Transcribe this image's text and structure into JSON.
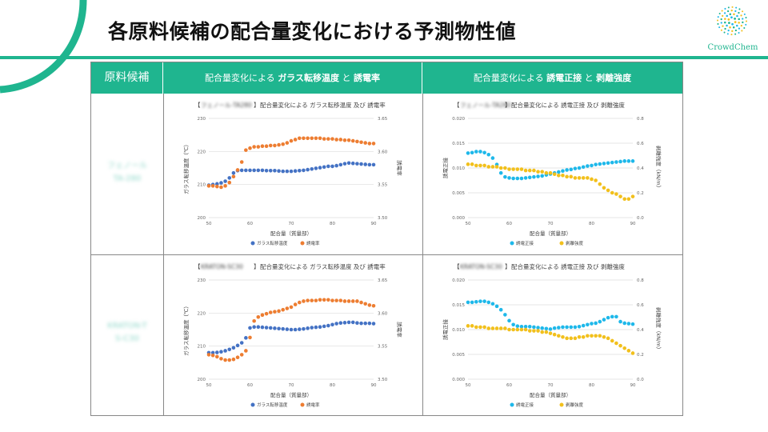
{
  "page": {
    "title": "各原料候補の配合量変化における予測物性値",
    "logo_text": "CrowdChem",
    "colors": {
      "accent": "#1fb58f",
      "series_blue": "#4472c4",
      "series_orange": "#ed7d31",
      "series_cyan": "#1eb8ea",
      "series_yellow": "#f2c01c"
    }
  },
  "table": {
    "header_material": "原料候補",
    "header_col1_prefix": "配合量変化による ",
    "header_col1_bold1": "ガラス転移温度",
    "header_col1_mid": " と ",
    "header_col1_bold2": "誘電率",
    "header_col2_prefix": "配合量変化による ",
    "header_col2_bold1": "誘電正接",
    "header_col2_mid": " と ",
    "header_col2_bold2": "剥離強度",
    "rows": [
      {
        "material_line1": "フェノール",
        "material_line2": "TA-280"
      },
      {
        "material_line1": "KRATON-T",
        "material_line2": "S-C30"
      }
    ]
  },
  "chart_data": [
    {
      "type": "scatter",
      "title_blurred": "フェノール-TA280",
      "title_text": "配合量変化による ガラス転移温度 及び 誘電率",
      "xlabel": "配合量（質量部）",
      "ylabel": "ガラス転移温度（℃）",
      "y2label": "誘電率",
      "xlim": [
        50,
        90
      ],
      "xticks": [
        50,
        60,
        70,
        80,
        90
      ],
      "ylim": [
        200,
        230
      ],
      "yticks": [
        200,
        210,
        220,
        230
      ],
      "y2lim": [
        3.5,
        3.65
      ],
      "y2ticks": [
        "3.50",
        "3.55",
        "3.60",
        "3.65"
      ],
      "series": [
        {
          "name": "ガラス転移温度",
          "axis": "left",
          "color": "#4472c4",
          "x": [
            50,
            51,
            52,
            53,
            54,
            55,
            56,
            57,
            58,
            59,
            60,
            61,
            62,
            63,
            64,
            65,
            66,
            67,
            68,
            69,
            70,
            71,
            72,
            73,
            74,
            75,
            76,
            77,
            78,
            79,
            80,
            81,
            82,
            83,
            84,
            85,
            86,
            87,
            88,
            89,
            90
          ],
          "y": [
            209.8,
            210,
            210.2,
            210.5,
            211,
            212,
            213.5,
            214.2,
            214.3,
            214.3,
            214.3,
            214.3,
            214.3,
            214.3,
            214.2,
            214.2,
            214.2,
            214.1,
            214,
            214,
            214,
            214.1,
            214.2,
            214.3,
            214.5,
            214.7,
            214.9,
            215.1,
            215.3,
            215.5,
            215.5,
            215.7,
            216,
            216.3,
            216.5,
            216.4,
            216.3,
            216.2,
            216.1,
            216,
            216
          ]
        },
        {
          "name": "誘電率",
          "axis": "right",
          "color": "#ed7d31",
          "x": [
            50,
            51,
            52,
            53,
            54,
            55,
            56,
            57,
            58,
            59,
            60,
            61,
            62,
            63,
            64,
            65,
            66,
            67,
            68,
            69,
            70,
            71,
            72,
            73,
            74,
            75,
            76,
            77,
            78,
            79,
            80,
            81,
            82,
            83,
            84,
            85,
            86,
            87,
            88,
            89,
            90
          ],
          "y": [
            3.548,
            3.548,
            3.547,
            3.546,
            3.548,
            3.553,
            3.562,
            3.572,
            3.584,
            3.602,
            3.605,
            3.607,
            3.607,
            3.608,
            3.608,
            3.609,
            3.609,
            3.61,
            3.611,
            3.613,
            3.616,
            3.618,
            3.62,
            3.62,
            3.62,
            3.62,
            3.62,
            3.62,
            3.619,
            3.619,
            3.619,
            3.618,
            3.618,
            3.617,
            3.617,
            3.616,
            3.615,
            3.614,
            3.613,
            3.612,
            3.612
          ]
        }
      ]
    },
    {
      "type": "scatter",
      "title_blurred": "フェノール-TA280",
      "title_text": "配合量変化による 誘電正接 及び 剥離強度",
      "xlabel": "配合量（質量部）",
      "ylabel": "誘電正接",
      "y2label": "剥離強度（kN/m）",
      "xlim": [
        50,
        90
      ],
      "xticks": [
        50,
        60,
        70,
        80,
        90
      ],
      "ylim": [
        0,
        0.02
      ],
      "yticks": [
        "0.000",
        "0.005",
        "0.010",
        "0.015",
        "0.020"
      ],
      "y2lim": [
        0,
        0.8
      ],
      "y2ticks": [
        "0.0",
        "0.2",
        "0.4",
        "0.6",
        "0.8"
      ],
      "series": [
        {
          "name": "誘電正接",
          "axis": "left",
          "color": "#1eb8ea",
          "x": [
            50,
            51,
            52,
            53,
            54,
            55,
            56,
            57,
            58,
            59,
            60,
            61,
            62,
            63,
            64,
            65,
            66,
            67,
            68,
            69,
            70,
            71,
            72,
            73,
            74,
            75,
            76,
            77,
            78,
            79,
            80,
            81,
            82,
            83,
            84,
            85,
            86,
            87,
            88,
            89,
            90
          ],
          "y": [
            0.013,
            0.0131,
            0.0133,
            0.0133,
            0.0131,
            0.0127,
            0.012,
            0.0107,
            0.009,
            0.0082,
            0.008,
            0.0079,
            0.0079,
            0.0079,
            0.008,
            0.0081,
            0.0082,
            0.0083,
            0.0084,
            0.0086,
            0.0088,
            0.009,
            0.0092,
            0.0094,
            0.0096,
            0.0097,
            0.0099,
            0.01,
            0.0102,
            0.0104,
            0.0105,
            0.0107,
            0.0108,
            0.0109,
            0.011,
            0.0111,
            0.0112,
            0.0113,
            0.0114,
            0.0114,
            0.0114
          ]
        },
        {
          "name": "剥離強度",
          "axis": "right",
          "color": "#f2c01c",
          "x": [
            50,
            51,
            52,
            53,
            54,
            55,
            56,
            57,
            58,
            59,
            60,
            61,
            62,
            63,
            64,
            65,
            66,
            67,
            68,
            69,
            70,
            71,
            72,
            73,
            74,
            75,
            76,
            77,
            78,
            79,
            80,
            81,
            82,
            83,
            84,
            85,
            86,
            87,
            88,
            89,
            90
          ],
          "y": [
            0.43,
            0.43,
            0.42,
            0.42,
            0.42,
            0.41,
            0.41,
            0.41,
            0.4,
            0.4,
            0.39,
            0.39,
            0.39,
            0.39,
            0.38,
            0.38,
            0.38,
            0.37,
            0.37,
            0.36,
            0.36,
            0.35,
            0.34,
            0.34,
            0.33,
            0.33,
            0.32,
            0.32,
            0.32,
            0.32,
            0.31,
            0.3,
            0.27,
            0.24,
            0.22,
            0.2,
            0.19,
            0.17,
            0.15,
            0.15,
            0.17
          ]
        }
      ]
    },
    {
      "type": "scatter",
      "title_blurred": "KRATON-SC30",
      "title_text": "配合量変化による ガラス転移温度 及び 誘電率",
      "xlabel": "配合量（質量部）",
      "ylabel": "ガラス転移温度（℃）",
      "y2label": "誘電率",
      "xlim": [
        50,
        90
      ],
      "xticks": [
        50,
        60,
        70,
        80,
        90
      ],
      "ylim": [
        200,
        230
      ],
      "yticks": [
        200,
        210,
        220,
        230
      ],
      "y2lim": [
        3.5,
        3.65
      ],
      "y2ticks": [
        "3.50",
        "3.55",
        "3.60",
        "3.65"
      ],
      "series": [
        {
          "name": "ガラス転移温度",
          "axis": "left",
          "color": "#4472c4",
          "x": [
            50,
            51,
            52,
            53,
            54,
            55,
            56,
            57,
            58,
            59,
            60,
            61,
            62,
            63,
            64,
            65,
            66,
            67,
            68,
            69,
            70,
            71,
            72,
            73,
            74,
            75,
            76,
            77,
            78,
            79,
            80,
            81,
            82,
            83,
            84,
            85,
            86,
            87,
            88,
            89,
            90
          ],
          "y": [
            208,
            208,
            208.1,
            208.3,
            208.6,
            209,
            209.5,
            210.2,
            211,
            212.5,
            215.5,
            215.8,
            215.8,
            215.7,
            215.6,
            215.5,
            215.4,
            215.3,
            215.2,
            215.1,
            215,
            215,
            215.1,
            215.2,
            215.4,
            215.6,
            215.7,
            215.8,
            216,
            216.2,
            216.5,
            216.8,
            217,
            217.1,
            217.2,
            217.2,
            217,
            216.9,
            216.9,
            216.9,
            216.8
          ]
        },
        {
          "name": "誘電率",
          "axis": "right",
          "color": "#ed7d31",
          "x": [
            50,
            51,
            52,
            53,
            54,
            55,
            56,
            57,
            58,
            59,
            60,
            61,
            62,
            63,
            64,
            65,
            66,
            67,
            68,
            69,
            70,
            71,
            72,
            73,
            74,
            75,
            76,
            77,
            78,
            79,
            80,
            81,
            82,
            83,
            84,
            85,
            86,
            87,
            88,
            89,
            90
          ],
          "y": [
            3.537,
            3.536,
            3.534,
            3.531,
            3.529,
            3.529,
            3.53,
            3.533,
            3.537,
            3.543,
            3.563,
            3.588,
            3.594,
            3.597,
            3.599,
            3.601,
            3.602,
            3.603,
            3.605,
            3.607,
            3.609,
            3.613,
            3.616,
            3.618,
            3.619,
            3.619,
            3.619,
            3.62,
            3.62,
            3.62,
            3.619,
            3.619,
            3.619,
            3.618,
            3.618,
            3.618,
            3.618,
            3.616,
            3.614,
            3.612,
            3.611
          ]
        }
      ]
    },
    {
      "type": "scatter",
      "title_blurred": "KRATON-SC30",
      "title_text": "配合量変化による 誘電正接 及び 剥離強度",
      "xlabel": "配合量（質量部）",
      "ylabel": "誘電正接",
      "y2label": "剥離強度（kN/m）",
      "xlim": [
        50,
        90
      ],
      "xticks": [
        50,
        60,
        70,
        80,
        90
      ],
      "ylim": [
        0,
        0.02
      ],
      "yticks": [
        "0.000",
        "0.005",
        "0.010",
        "0.015",
        "0.020"
      ],
      "y2lim": [
        0,
        0.8
      ],
      "y2ticks": [
        "0.0",
        "0.2",
        "0.4",
        "0.6",
        "0.8"
      ],
      "series": [
        {
          "name": "誘電正接",
          "axis": "left",
          "color": "#1eb8ea",
          "x": [
            50,
            51,
            52,
            53,
            54,
            55,
            56,
            57,
            58,
            59,
            60,
            61,
            62,
            63,
            64,
            65,
            66,
            67,
            68,
            69,
            70,
            71,
            72,
            73,
            74,
            75,
            76,
            77,
            78,
            79,
            80,
            81,
            82,
            83,
            84,
            85,
            86,
            87,
            88,
            89,
            90
          ],
          "y": [
            0.0155,
            0.0155,
            0.0156,
            0.0157,
            0.0157,
            0.0155,
            0.0152,
            0.0147,
            0.014,
            0.013,
            0.0118,
            0.011,
            0.0107,
            0.0106,
            0.0106,
            0.0106,
            0.0105,
            0.0104,
            0.0103,
            0.0102,
            0.0101,
            0.0103,
            0.0104,
            0.0105,
            0.0105,
            0.0105,
            0.0105,
            0.0106,
            0.0108,
            0.011,
            0.0112,
            0.0113,
            0.0116,
            0.012,
            0.0124,
            0.0126,
            0.0126,
            0.0116,
            0.0113,
            0.0112,
            0.0111
          ]
        },
        {
          "name": "剥離強度",
          "axis": "right",
          "color": "#f2c01c",
          "x": [
            50,
            51,
            52,
            53,
            54,
            55,
            56,
            57,
            58,
            59,
            60,
            61,
            62,
            63,
            64,
            65,
            66,
            67,
            68,
            69,
            70,
            71,
            72,
            73,
            74,
            75,
            76,
            77,
            78,
            79,
            80,
            81,
            82,
            83,
            84,
            85,
            86,
            87,
            88,
            89,
            90
          ],
          "y": [
            0.43,
            0.43,
            0.42,
            0.42,
            0.42,
            0.41,
            0.41,
            0.41,
            0.41,
            0.41,
            0.4,
            0.4,
            0.4,
            0.4,
            0.4,
            0.39,
            0.39,
            0.39,
            0.38,
            0.38,
            0.37,
            0.36,
            0.35,
            0.34,
            0.33,
            0.33,
            0.33,
            0.34,
            0.34,
            0.35,
            0.35,
            0.35,
            0.35,
            0.34,
            0.33,
            0.31,
            0.29,
            0.27,
            0.25,
            0.23,
            0.21
          ]
        }
      ]
    }
  ]
}
